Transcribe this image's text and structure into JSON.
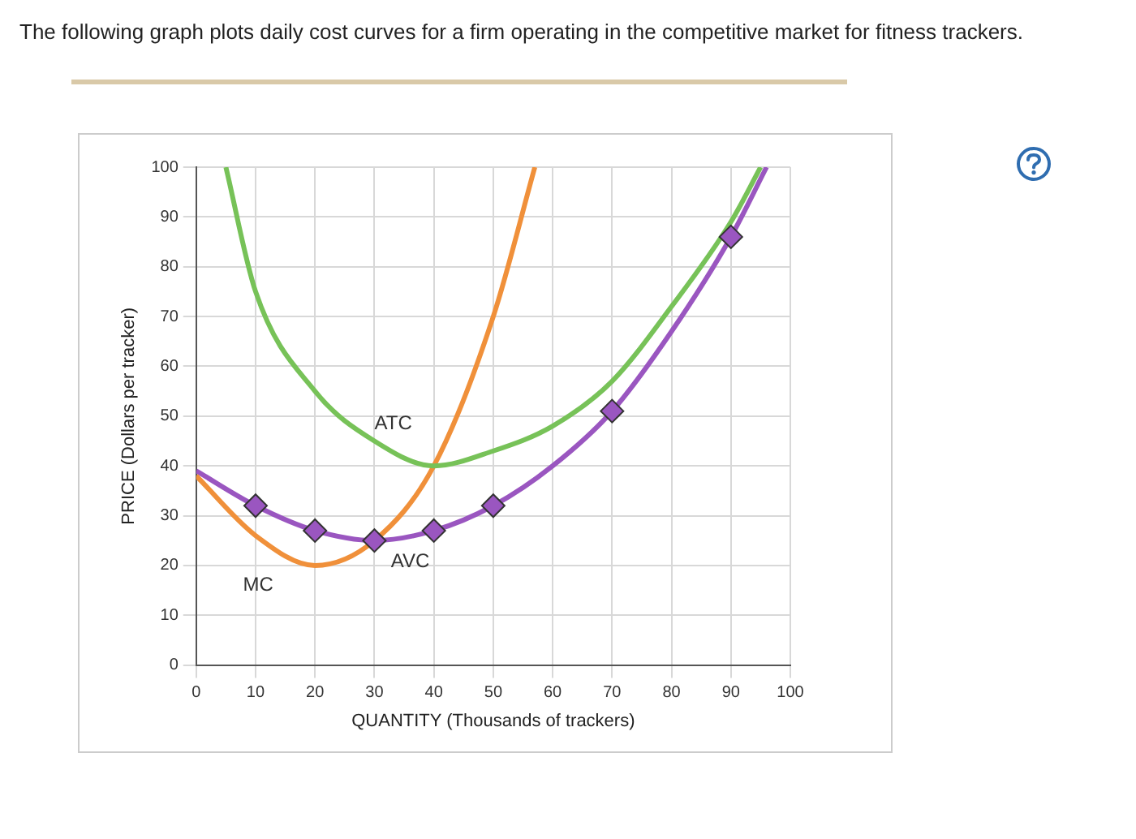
{
  "chart_data": {
    "type": "line",
    "title": "The following graph plots daily cost curves for a firm operating in the competitive market for fitness trackers.",
    "xlabel": "QUANTITY (Thousands of trackers)",
    "ylabel": "PRICE (Dollars per tracker)",
    "xlim": [
      0,
      100
    ],
    "xticks": [
      0,
      10,
      20,
      30,
      40,
      50,
      60,
      70,
      80,
      90,
      100
    ],
    "ylim": [
      0,
      100
    ],
    "yticks": [
      0,
      10,
      20,
      30,
      40,
      50,
      60,
      70,
      80,
      90,
      100
    ],
    "grid": true,
    "legend": false,
    "series": [
      {
        "name": "ATC",
        "type": "line",
        "color": "#77c258",
        "marker": "none",
        "x": [
          5,
          10,
          20,
          30,
          40,
          50,
          60,
          70,
          80,
          90,
          95
        ],
        "values": [
          100,
          75,
          55,
          45,
          40,
          43,
          48,
          57,
          72,
          89,
          100
        ]
      },
      {
        "name": "MC",
        "type": "line",
        "color": "#f0903a",
        "marker": "none",
        "x": [
          0,
          10,
          20,
          30,
          40,
          50,
          57
        ],
        "values": [
          38,
          26,
          20,
          25,
          40,
          70,
          100
        ]
      },
      {
        "name": "AVC",
        "type": "line",
        "color": "#9a56c0",
        "marker": "none",
        "x": [
          0,
          10,
          20,
          30,
          40,
          50,
          60,
          70,
          80,
          90,
          96
        ],
        "values": [
          39,
          32,
          27,
          25,
          27,
          32,
          40,
          51,
          67,
          86,
          100
        ]
      },
      {
        "type": "scatter",
        "color": "#9a56c0",
        "marker": "diamond",
        "x": [
          10,
          20,
          30,
          40,
          50,
          70,
          90
        ],
        "values": [
          32,
          27,
          25,
          27,
          32,
          51,
          86
        ]
      }
    ]
  }
}
